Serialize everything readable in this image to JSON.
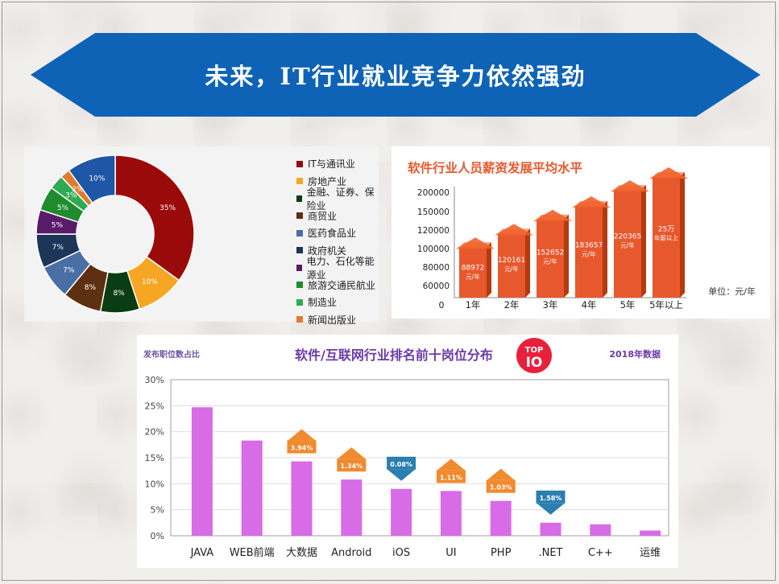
{
  "banner": {
    "title": "未来，IT行业就业竞争力依然强劲",
    "color": "#0e63b6"
  },
  "chart_data": [
    {
      "type": "pie",
      "variant": "donut",
      "categories": [
        "IT与通讯业",
        "房地产业",
        "金融、证券、保险业",
        "商贸业",
        "医药食品业",
        "政府机关",
        "电力、石化等能源业",
        "旅游交通民航业",
        "制造业",
        "新闻出版业"
      ],
      "values": [
        35,
        10,
        8,
        8,
        7,
        7,
        5,
        5,
        3,
        2
      ],
      "labels": [
        "35%",
        "10%",
        "8%",
        "8%",
        "7%",
        "7%",
        "5%",
        "5%",
        "3%",
        "2%"
      ],
      "start_label": "10%",
      "start_value": 10,
      "start_color": "#1f57a6",
      "colors": [
        "#9b0a0a",
        "#f6a623",
        "#0b3d14",
        "#5e3012",
        "#4a6fa5",
        "#1c3559",
        "#5a1a6a",
        "#1e8c2e",
        "#2eaa52",
        "#e07a2c"
      ],
      "legend_position": "right"
    },
    {
      "type": "bar",
      "title": "软件行业人员薪资发展平均水平",
      "categories": [
        "1年",
        "2年",
        "3年",
        "4年",
        "5年",
        "5年以上"
      ],
      "values": [
        88972,
        120161,
        152652,
        183657,
        220365,
        250000
      ],
      "labels": [
        [
          "88972",
          "元/年"
        ],
        [
          "120161",
          "元/年"
        ],
        [
          "152652",
          "元/年"
        ],
        [
          "183657",
          "元/年"
        ],
        [
          "220365",
          "元/年"
        ],
        [
          "25万",
          "年薪以上"
        ]
      ],
      "yticks": [
        "200000",
        "150000",
        "120000",
        "100000",
        "80000",
        "60000",
        "0"
      ],
      "unit": "单位：元/年",
      "color": "#e8582d"
    },
    {
      "type": "bar",
      "title": "软件/互联网行业排名前十岗位分布",
      "ylabel": "发布职位数占比",
      "year_note": "2018年数据",
      "badge": [
        "TOP",
        "IO"
      ],
      "categories": [
        "JAVA",
        "WEB前端",
        "大数据",
        "Android",
        "iOS",
        "UI",
        "PHP",
        ".NET",
        "C++",
        "运维"
      ],
      "values": [
        24.7,
        18.3,
        14.3,
        10.8,
        9.0,
        8.6,
        6.7,
        2.5,
        2.2,
        1.0
      ],
      "ylim": [
        0,
        30
      ],
      "yticks": [
        "0%",
        "5%",
        "10%",
        "15%",
        "20%",
        "25%",
        "30%"
      ],
      "changes": [
        null,
        null,
        "3.94%",
        "1.34%",
        "0.08%",
        "1.11%",
        "1.03%",
        "1.58%",
        null,
        null
      ],
      "change_dir": [
        null,
        null,
        "up",
        "up",
        "down",
        "up",
        "up",
        "down",
        null,
        null
      ],
      "up_color": "#f08a2e",
      "down_color": "#2b7fb0",
      "bar_color": "#d86be6"
    }
  ]
}
